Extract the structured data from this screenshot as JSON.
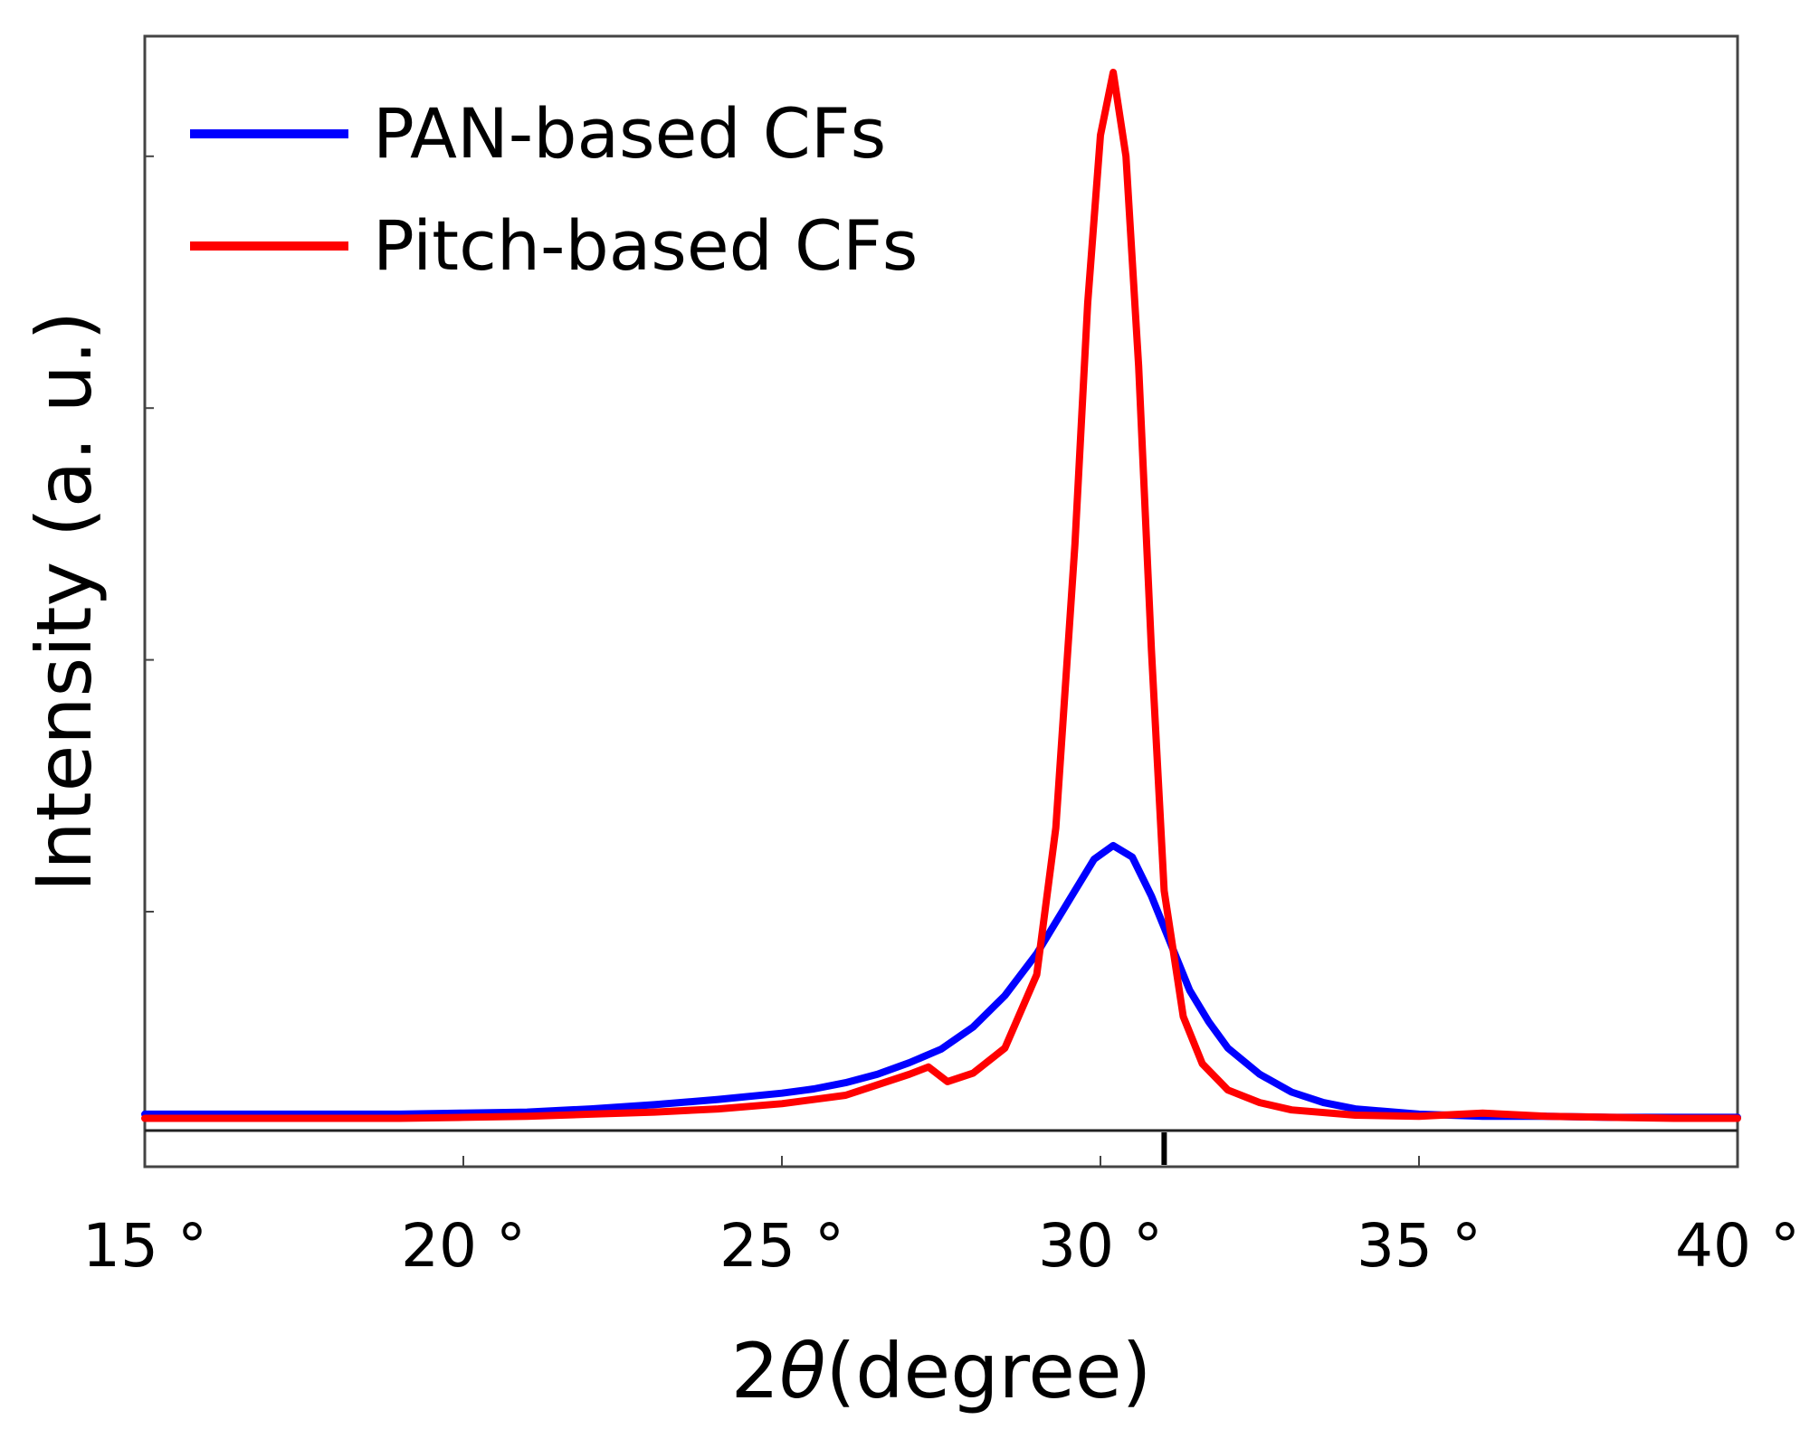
{
  "chart_data": {
    "type": "line",
    "title": "",
    "xlabel_prefix": "2",
    "xlabel_symbol": "θ",
    "xlabel_suffix": "(degree)",
    "ylabel": "Intensity (a. u.)",
    "xlim": [
      15,
      40
    ],
    "ylim": [
      0,
      100
    ],
    "x_ticks": [
      15,
      20,
      25,
      30,
      35,
      40
    ],
    "x_tick_labels": [
      "15 °",
      "20 °",
      "25 °",
      "30 °",
      "35 °",
      "40 °"
    ],
    "y_ticks_unlabeled": [
      20,
      44,
      68,
      92
    ],
    "legend_position": "top-left",
    "series": [
      {
        "name": "PAN-based CFs",
        "color": "#0000ff",
        "x": [
          15,
          16,
          17,
          18,
          19,
          20,
          21,
          22,
          23,
          24,
          25,
          25.5,
          26,
          26.5,
          27,
          27.5,
          28,
          28.5,
          29,
          29.3,
          29.6,
          29.9,
          30.2,
          30.5,
          30.8,
          31.1,
          31.4,
          31.7,
          32,
          32.5,
          33,
          33.5,
          34,
          35,
          36,
          37,
          38,
          39,
          40
        ],
        "y": [
          0.7,
          0.7,
          0.7,
          0.7,
          0.7,
          0.8,
          0.9,
          1.2,
          1.6,
          2.1,
          2.7,
          3.1,
          3.7,
          4.5,
          5.6,
          6.9,
          9.0,
          12.0,
          16.0,
          19.0,
          22.0,
          25.0,
          26.3,
          25.2,
          21.5,
          17.0,
          12.5,
          9.5,
          7.0,
          4.5,
          2.8,
          1.8,
          1.2,
          0.7,
          0.5,
          0.5,
          0.4,
          0.4,
          0.4
        ]
      },
      {
        "name": "Pitch-based CFs",
        "color": "#ff0000",
        "x": [
          15,
          16,
          17,
          18,
          19,
          20,
          21,
          22,
          23,
          24,
          25,
          26,
          26.5,
          27,
          27.3,
          27.6,
          28,
          28.5,
          29,
          29.3,
          29.6,
          29.8,
          30,
          30.2,
          30.4,
          30.6,
          30.8,
          31,
          31.3,
          31.6,
          32,
          32.5,
          33,
          34,
          35,
          36,
          37,
          38,
          39,
          40
        ],
        "y": [
          0.3,
          0.3,
          0.3,
          0.3,
          0.3,
          0.4,
          0.5,
          0.7,
          0.9,
          1.2,
          1.7,
          2.5,
          3.5,
          4.5,
          5.2,
          3.8,
          4.6,
          7.0,
          14.0,
          28.0,
          55.0,
          78.0,
          94.0,
          100.0,
          92.0,
          72.0,
          45.0,
          22.0,
          10.0,
          5.5,
          3.0,
          1.8,
          1.1,
          0.6,
          0.5,
          0.8,
          0.5,
          0.4,
          0.3,
          0.3
        ]
      }
    ],
    "annotation_marker_x": 31
  }
}
